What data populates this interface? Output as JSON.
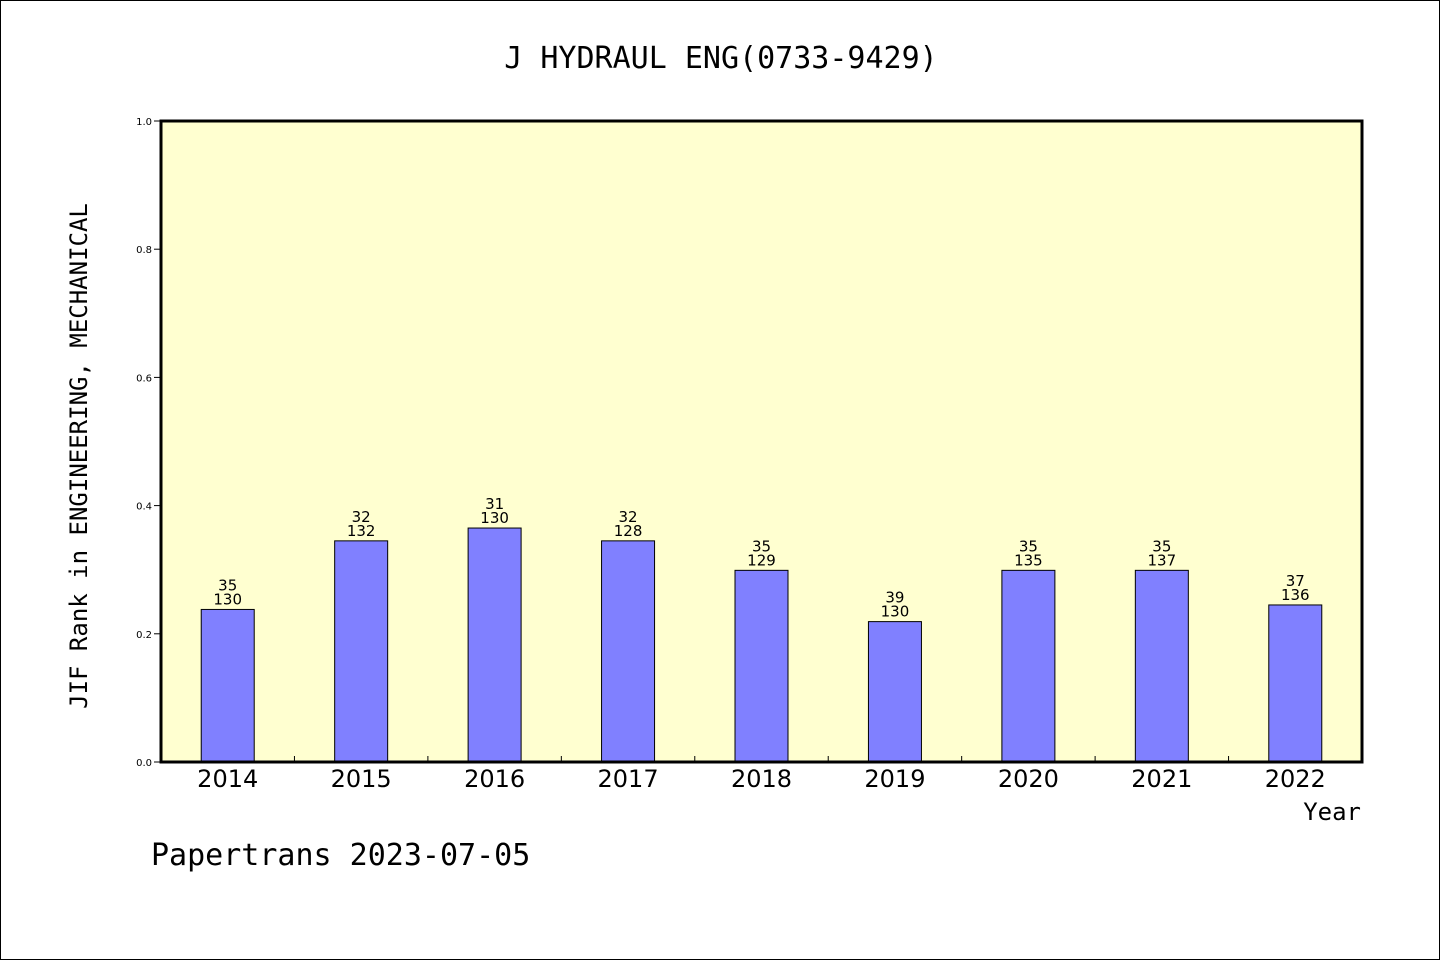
{
  "chart_data": {
    "type": "bar",
    "title": "J HYDRAUL ENG(0733-9429)",
    "xlabel": "Year",
    "ylabel": "JIF Rank in ENGINEERING, MECHANICAL",
    "ylim": [
      0,
      1.0
    ],
    "yticks": [
      "0.0",
      "0.2",
      "0.4",
      "0.6",
      "0.8",
      "1.0"
    ],
    "grid": false,
    "background_color": "#ffffd0",
    "bar_color": "#8080ff",
    "categories": [
      "2014",
      "2015",
      "2016",
      "2017",
      "2018",
      "2019",
      "2020",
      "2021",
      "2022"
    ],
    "values": [
      0.238,
      0.345,
      0.365,
      0.345,
      0.299,
      0.219,
      0.299,
      0.299,
      0.245
    ],
    "rank_labels": [
      "35",
      "32",
      "31",
      "32",
      "35",
      "39",
      "35",
      "35",
      "37"
    ],
    "total_labels": [
      "130",
      "132",
      "130",
      "128",
      "129",
      "130",
      "135",
      "137",
      "136"
    ]
  },
  "footer": "Papertrans 2023-07-05"
}
